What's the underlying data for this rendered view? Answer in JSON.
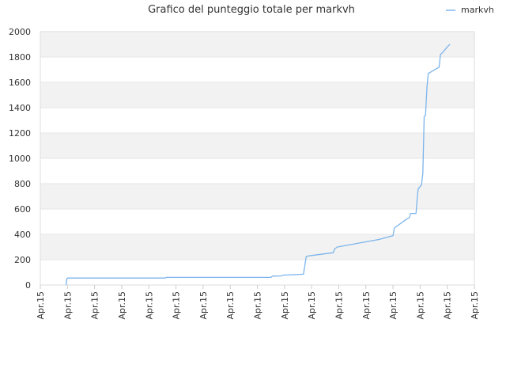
{
  "chart_data": {
    "type": "line",
    "title": "Grafico del punteggio totale per markvh",
    "xlabel": "",
    "ylabel": "",
    "x_tick_labels": [
      "Apr.15",
      "Apr.15",
      "Apr.15",
      "Apr.15",
      "Apr.15",
      "Apr.15",
      "Apr.15",
      "Apr.15",
      "Apr.15",
      "Apr.15",
      "Apr.15",
      "Apr.15",
      "Apr.15",
      "Apr.15",
      "Apr.15",
      "Apr.15",
      "Apr.15"
    ],
    "y_ticks": [
      0,
      200,
      400,
      600,
      800,
      1000,
      1200,
      1400,
      1600,
      1800,
      2000
    ],
    "ylim": [
      0,
      2000
    ],
    "xlim": [
      0,
      16
    ],
    "grid": "horizontal bands",
    "legend_position": "top-right",
    "series": [
      {
        "name": "markvh",
        "color": "#7cb5ec",
        "points": [
          [
            0.95,
            0
          ],
          [
            0.98,
            50
          ],
          [
            1.0,
            55
          ],
          [
            4.6,
            55
          ],
          [
            4.65,
            60
          ],
          [
            8.5,
            60
          ],
          [
            8.55,
            70
          ],
          [
            8.9,
            72
          ],
          [
            8.95,
            78
          ],
          [
            9.7,
            85
          ],
          [
            9.75,
            150
          ],
          [
            9.8,
            225
          ],
          [
            9.9,
            230
          ],
          [
            10.8,
            255
          ],
          [
            10.85,
            285
          ],
          [
            10.95,
            300
          ],
          [
            12.5,
            360
          ],
          [
            13.0,
            390
          ],
          [
            13.05,
            450
          ],
          [
            13.5,
            520
          ],
          [
            13.6,
            530
          ],
          [
            13.65,
            565
          ],
          [
            13.85,
            565
          ],
          [
            13.9,
            700
          ],
          [
            13.93,
            760
          ],
          [
            14.05,
            790
          ],
          [
            14.1,
            880
          ],
          [
            14.12,
            1060
          ],
          [
            14.15,
            1330
          ],
          [
            14.2,
            1340
          ],
          [
            14.25,
            1560
          ],
          [
            14.3,
            1670
          ],
          [
            14.7,
            1720
          ],
          [
            14.75,
            1820
          ],
          [
            14.85,
            1840
          ],
          [
            15.0,
            1880
          ],
          [
            15.1,
            1900
          ]
        ]
      }
    ]
  }
}
